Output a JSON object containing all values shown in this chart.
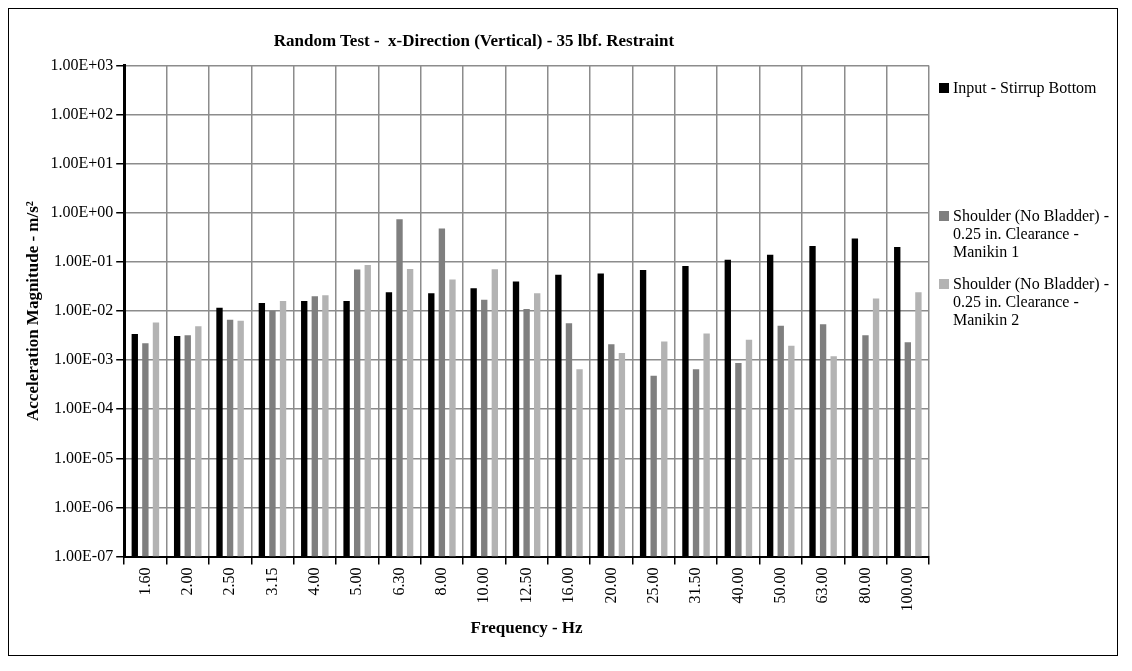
{
  "chart_data": {
    "type": "bar",
    "title": "Random Test -  x-Direction (Vertical) - 35 lbf. Restraint",
    "xlabel": "Frequency - Hz",
    "ylabel": "Acceleration Magnitude - m/s²",
    "categories": [
      "1.60",
      "2.00",
      "2.50",
      "3.15",
      "4.00",
      "5.00",
      "6.30",
      "8.00",
      "10.00",
      "12.50",
      "16.00",
      "20.00",
      "25.00",
      "31.50",
      "40.00",
      "50.00",
      "63.00",
      "80.00",
      "100.00"
    ],
    "series": [
      {
        "name": "Input - Stirrup Bottom",
        "color": "#000000",
        "values": [
          0.0034,
          0.0031,
          0.0116,
          0.0145,
          0.016,
          0.016,
          0.024,
          0.023,
          0.029,
          0.04,
          0.055,
          0.058,
          0.068,
          0.082,
          0.11,
          0.14,
          0.21,
          0.3,
          0.2
        ]
      },
      {
        "name": "Shoulder (No Bladder) - 0.25 in. Clearance - Manikin 1",
        "color": "#7f7f7f",
        "values": [
          0.0022,
          0.0032,
          0.0066,
          0.01,
          0.02,
          0.07,
          0.74,
          0.48,
          0.017,
          0.011,
          0.0056,
          0.0021,
          0.00048,
          0.00065,
          0.00087,
          0.005,
          0.0054,
          0.0032,
          0.0023
        ]
      },
      {
        "name": "Shoulder (No Bladder) - 0.25 in. Clearance - Manikin 2",
        "color": "#b3b3b3",
        "values": [
          0.0058,
          0.0049,
          0.0063,
          0.016,
          0.021,
          0.086,
          0.072,
          0.044,
          0.071,
          0.023,
          0.00065,
          0.0014,
          0.0024,
          0.0035,
          0.0026,
          0.00195,
          0.0012,
          0.018,
          0.024
        ]
      }
    ],
    "log": "y",
    "ylim": [
      1e-07,
      1000
    ],
    "yticks": [
      {
        "value": 1e-07,
        "label": "1.00E-07"
      },
      {
        "value": 1e-06,
        "label": "1.00E-06"
      },
      {
        "value": 1e-05,
        "label": "1.00E-05"
      },
      {
        "value": 0.0001,
        "label": "1.00E-04"
      },
      {
        "value": 0.001,
        "label": "1.00E-03"
      },
      {
        "value": 0.01,
        "label": "1.00E-02"
      },
      {
        "value": 0.1,
        "label": "1.00E-01"
      },
      {
        "value": 1,
        "label": "1.00E+00"
      },
      {
        "value": 10,
        "label": "1.00E+01"
      },
      {
        "value": 100,
        "label": "1.00E+02"
      },
      {
        "value": 1000,
        "label": "1.00E+03"
      }
    ],
    "grid": true,
    "legend": "right"
  }
}
